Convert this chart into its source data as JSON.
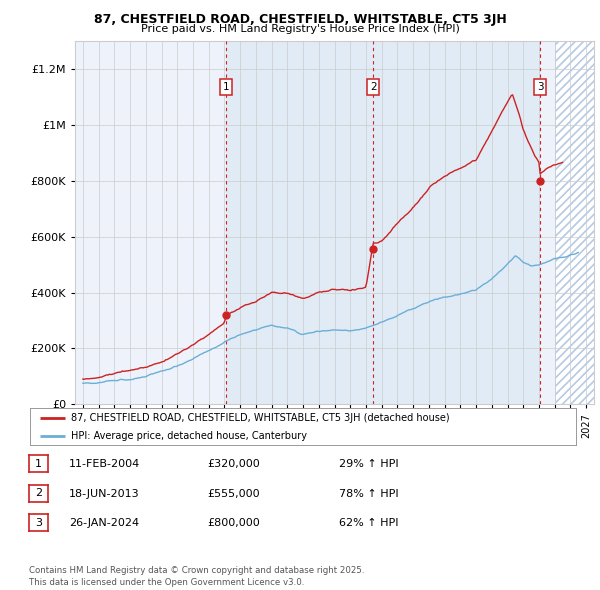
{
  "title": "87, CHESTFIELD ROAD, CHESTFIELD, WHITSTABLE, CT5 3JH",
  "subtitle": "Price paid vs. HM Land Registry's House Price Index (HPI)",
  "ylabel_ticks": [
    "£0",
    "£200K",
    "£400K",
    "£600K",
    "£800K",
    "£1M",
    "£1.2M"
  ],
  "ytick_vals": [
    0,
    200000,
    400000,
    600000,
    800000,
    1000000,
    1200000
  ],
  "ylim": [
    0,
    1300000
  ],
  "xlim_start": 1994.5,
  "xlim_end": 2027.5,
  "xtick_years": [
    1995,
    1996,
    1997,
    1998,
    1999,
    2000,
    2001,
    2002,
    2003,
    2004,
    2005,
    2006,
    2007,
    2008,
    2009,
    2010,
    2011,
    2012,
    2013,
    2014,
    2015,
    2016,
    2017,
    2018,
    2019,
    2020,
    2021,
    2022,
    2023,
    2024,
    2025,
    2026,
    2027
  ],
  "sale_dates": [
    2004.11,
    2013.46,
    2024.07
  ],
  "sale_prices": [
    320000,
    555000,
    800000
  ],
  "sale_labels": [
    "1",
    "2",
    "3"
  ],
  "hpi_color": "#6baed6",
  "price_color": "#cc2222",
  "shade_color": "#dce8f5",
  "legend_label_price": "87, CHESTFIELD ROAD, CHESTFIELD, WHITSTABLE, CT5 3JH (detached house)",
  "legend_label_hpi": "HPI: Average price, detached house, Canterbury",
  "table_rows": [
    {
      "num": "1",
      "date": "11-FEB-2004",
      "price": "£320,000",
      "hpi": "29% ↑ HPI"
    },
    {
      "num": "2",
      "date": "18-JUN-2013",
      "price": "£555,000",
      "hpi": "78% ↑ HPI"
    },
    {
      "num": "3",
      "date": "26-JAN-2024",
      "price": "£800,000",
      "hpi": "62% ↑ HPI"
    }
  ],
  "footnote": "Contains HM Land Registry data © Crown copyright and database right 2025.\nThis data is licensed under the Open Government Licence v3.0.",
  "background_color": "#ffffff",
  "plot_bg_color": "#eef3fb",
  "grid_color": "#cccccc"
}
